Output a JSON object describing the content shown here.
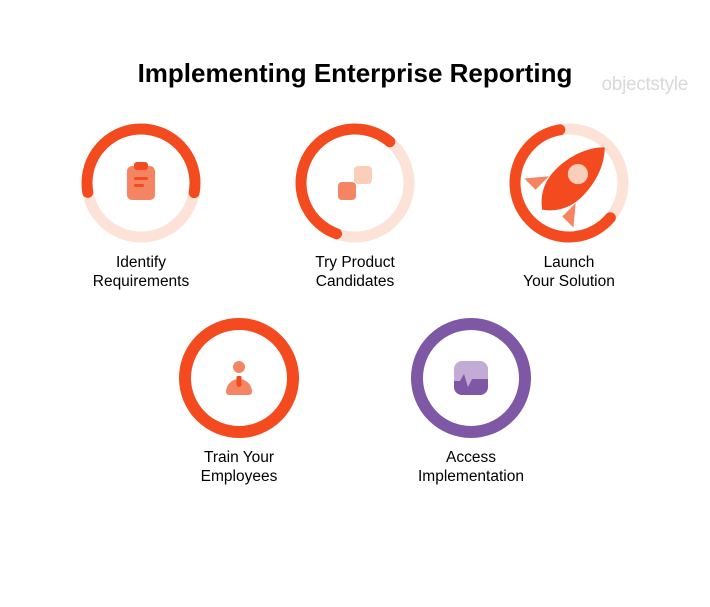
{
  "colors": {
    "orange": "#f44a1f",
    "orange_light": "#fbceb9",
    "orange_track": "#fde2d7",
    "orange_mid": "#f58463",
    "purple": "#7e57a5",
    "purple_light": "#c2abd4",
    "purple_mid": "#b098c6",
    "black": "#000000",
    "watermark": "#d9d9d9",
    "white": "#ffffff"
  },
  "watermark": "objectstyle",
  "title": "Implementing Enterprise Reporting",
  "ring": {
    "outer_radius": 54,
    "stroke_width": 11,
    "full_stroke_width": 12
  },
  "steps": [
    {
      "id": "identify-requirements",
      "label": "Identify\nRequirements",
      "icon": "clipboard",
      "ring_style": "arc",
      "arc_start_deg": 170,
      "arc_sweep_deg": 200,
      "track_color_key": "orange_track",
      "arc_color_key": "orange",
      "icon_primary_key": "orange_mid",
      "icon_secondary_key": "orange"
    },
    {
      "id": "try-product-candidates",
      "label": "Try Product\nCandidates",
      "icon": "squares",
      "ring_style": "arc",
      "arc_start_deg": 110,
      "arc_sweep_deg": 200,
      "track_color_key": "orange_track",
      "arc_color_key": "orange",
      "icon_primary_key": "orange_mid",
      "icon_secondary_key": "orange_light"
    },
    {
      "id": "launch-your-solution",
      "label": "Launch\nYour Solution",
      "icon": "rocket",
      "ring_style": "arc",
      "arc_start_deg": 40,
      "arc_sweep_deg": 220,
      "track_color_key": "orange_track",
      "arc_color_key": "orange",
      "icon_primary_key": "orange",
      "icon_secondary_key": "orange_mid"
    },
    {
      "id": "train-your-employees",
      "label": "Train Your\nEmployees",
      "icon": "person",
      "ring_style": "full",
      "arc_color_key": "orange",
      "icon_primary_key": "orange_mid",
      "icon_secondary_key": "orange"
    },
    {
      "id": "access-implementation",
      "label": "Access\nImplementation",
      "icon": "app",
      "ring_style": "full",
      "arc_color_key": "purple",
      "icon_primary_key": "purple_light",
      "icon_secondary_key": "purple_mid"
    }
  ]
}
